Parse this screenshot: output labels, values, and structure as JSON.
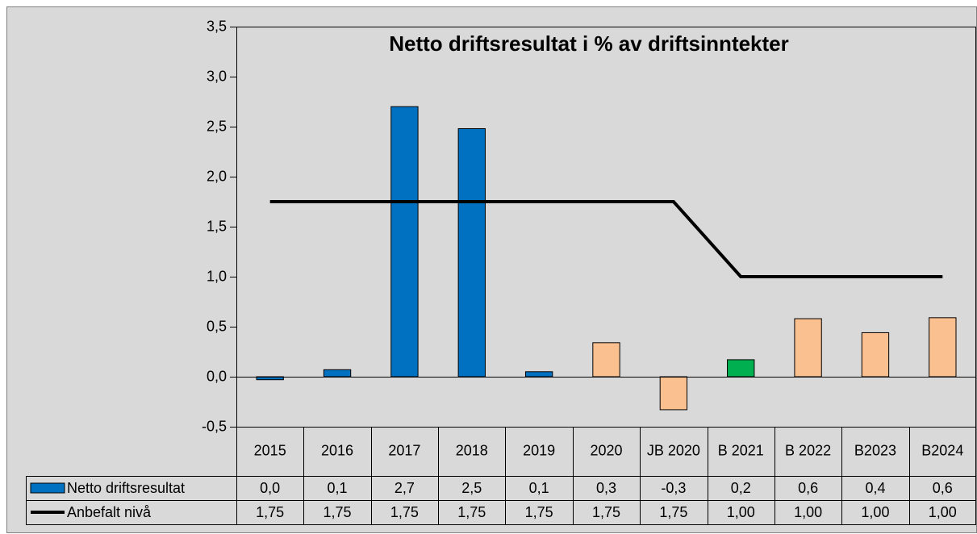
{
  "chart_data": {
    "type": "bar",
    "title": "Netto driftsresultat i % av driftsinntekter",
    "categories": [
      "2015",
      "2016",
      "2017",
      "2018",
      "2019",
      "2020",
      "JB 2020",
      "B 2021",
      "B 2022",
      "B2023",
      "B2024"
    ],
    "series": [
      {
        "name": "Netto driftsresultat",
        "type": "bar",
        "color": "#0070c0",
        "colors": [
          "#0070c0",
          "#0070c0",
          "#0070c0",
          "#0070c0",
          "#0070c0",
          "#fac090",
          "#fac090",
          "#00b050",
          "#fac090",
          "#fac090",
          "#fac090"
        ],
        "values": [
          -0.03,
          0.07,
          2.7,
          2.48,
          0.05,
          0.34,
          -0.33,
          0.17,
          0.58,
          0.44,
          0.59
        ],
        "value_labels": [
          "0,0",
          "0,1",
          "2,7",
          "2,5",
          "0,1",
          "0,3",
          "-0,3",
          "0,2",
          "0,6",
          "0,4",
          "0,6"
        ]
      },
      {
        "name": "Anbefalt nivå",
        "type": "line",
        "color": "#000000",
        "values": [
          1.75,
          1.75,
          1.75,
          1.75,
          1.75,
          1.75,
          1.75,
          1.0,
          1.0,
          1.0,
          1.0
        ],
        "value_labels": [
          "1,75",
          "1,75",
          "1,75",
          "1,75",
          "1,75",
          "1,75",
          "1,75",
          "1,00",
          "1,00",
          "1,00",
          "1,00"
        ]
      }
    ],
    "ylim": [
      -0.5,
      3.5
    ],
    "yticks": [
      {
        "value": -0.5,
        "label": "-0,5"
      },
      {
        "value": 0,
        "label": "0,0"
      },
      {
        "value": 0.5,
        "label": "0,5"
      },
      {
        "value": 1,
        "label": "1,0"
      },
      {
        "value": 1.5,
        "label": "1,5"
      },
      {
        "value": 2,
        "label": "2,0"
      },
      {
        "value": 2.5,
        "label": "2,5"
      },
      {
        "value": 3,
        "label": "3,0"
      },
      {
        "value": 3.5,
        "label": "3,5"
      }
    ]
  }
}
